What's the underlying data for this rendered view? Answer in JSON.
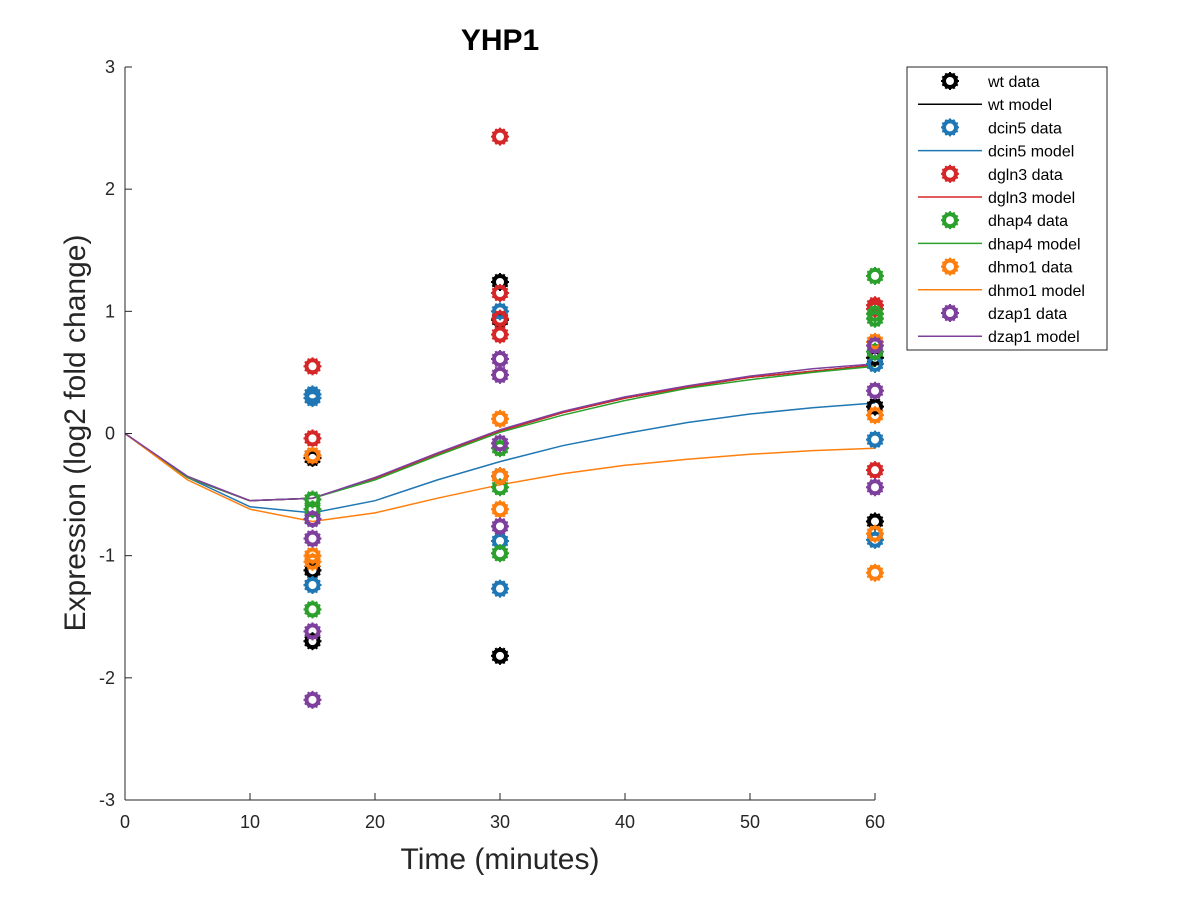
{
  "chart_data": {
    "type": "scatter",
    "title": "YHP1",
    "xlabel": "Time (minutes)",
    "ylabel": "Expression (log2 fold change)",
    "xlim": [
      0,
      60
    ],
    "ylim": [
      -3,
      3
    ],
    "xticks": [
      0,
      10,
      20,
      30,
      40,
      50,
      60
    ],
    "yticks": [
      -3,
      -2,
      -1,
      0,
      1,
      2,
      3
    ],
    "grid": false,
    "legend_position": "top-right outside",
    "model_x": [
      0,
      5,
      10,
      15,
      20,
      25,
      30,
      35,
      40,
      45,
      50,
      55,
      60
    ],
    "series": [
      {
        "name": "wt",
        "data_label": "wt data",
        "model_label": "wt model",
        "color": "#000000",
        "data_points": [
          [
            15,
            -0.2
          ],
          [
            15,
            -1.12
          ],
          [
            15,
            -1.7
          ],
          [
            30,
            1.24
          ],
          [
            30,
            0.93
          ],
          [
            30,
            -0.35
          ],
          [
            30,
            -1.82
          ],
          [
            60,
            0.22
          ],
          [
            60,
            -0.72
          ],
          [
            60,
            0.62
          ]
        ],
        "model": [
          0,
          -0.36,
          -0.55,
          -0.53,
          -0.37,
          -0.17,
          0.02,
          0.17,
          0.29,
          0.38,
          0.46,
          0.51,
          0.56
        ]
      },
      {
        "name": "dcin5",
        "data_label": "dcin5 data",
        "model_label": "dcin5 model",
        "color": "#1f77b4",
        "data_points": [
          [
            15,
            0.32
          ],
          [
            15,
            0.29
          ],
          [
            15,
            -1.24
          ],
          [
            15,
            -0.7
          ],
          [
            30,
            1.0
          ],
          [
            30,
            -0.88
          ],
          [
            30,
            -1.27
          ],
          [
            60,
            -0.05
          ],
          [
            60,
            -0.87
          ],
          [
            60,
            0.57
          ]
        ],
        "model": [
          0,
          -0.36,
          -0.6,
          -0.65,
          -0.55,
          -0.38,
          -0.23,
          -0.1,
          0.0,
          0.09,
          0.16,
          0.21,
          0.25
        ]
      },
      {
        "name": "dgln3",
        "data_label": "dgln3 data",
        "model_label": "dgln3 model",
        "color": "#d62728",
        "data_points": [
          [
            15,
            0.55
          ],
          [
            15,
            -0.04
          ],
          [
            15,
            -0.18
          ],
          [
            30,
            2.43
          ],
          [
            30,
            1.15
          ],
          [
            30,
            0.94
          ],
          [
            30,
            0.81
          ],
          [
            60,
            1.05
          ],
          [
            60,
            1.02
          ],
          [
            60,
            -0.3
          ]
        ],
        "model": [
          0,
          -0.36,
          -0.55,
          -0.53,
          -0.37,
          -0.17,
          0.02,
          0.17,
          0.29,
          0.38,
          0.46,
          0.51,
          0.56
        ]
      },
      {
        "name": "dhap4",
        "data_label": "dhap4 data",
        "model_label": "dhap4 model",
        "color": "#2ca02c",
        "data_points": [
          [
            15,
            -0.54
          ],
          [
            15,
            -0.62
          ],
          [
            15,
            -1.44
          ],
          [
            30,
            -0.12
          ],
          [
            30,
            -0.44
          ],
          [
            30,
            -0.98
          ],
          [
            60,
            1.29
          ],
          [
            60,
            0.98
          ],
          [
            60,
            0.94
          ],
          [
            60,
            0.67
          ]
        ],
        "model": [
          0,
          -0.36,
          -0.55,
          -0.53,
          -0.38,
          -0.18,
          0.01,
          0.15,
          0.27,
          0.37,
          0.44,
          0.5,
          0.55
        ]
      },
      {
        "name": "dhmo1",
        "data_label": "dhmo1 data",
        "model_label": "dhmo1 model",
        "color": "#ff7f0e",
        "data_points": [
          [
            15,
            -1.0
          ],
          [
            15,
            -1.05
          ],
          [
            15,
            -0.18
          ],
          [
            30,
            0.12
          ],
          [
            30,
            -0.35
          ],
          [
            30,
            -0.62
          ],
          [
            60,
            0.75
          ],
          [
            60,
            0.15
          ],
          [
            60,
            -0.82
          ],
          [
            60,
            -1.14
          ]
        ],
        "model": [
          0,
          -0.38,
          -0.62,
          -0.72,
          -0.65,
          -0.53,
          -0.42,
          -0.33,
          -0.26,
          -0.21,
          -0.17,
          -0.14,
          -0.12
        ]
      },
      {
        "name": "dzap1",
        "data_label": "dzap1 data",
        "model_label": "dzap1 model",
        "color": "#7e3f9d",
        "data_points": [
          [
            15,
            -0.7
          ],
          [
            15,
            -0.86
          ],
          [
            15,
            -1.62
          ],
          [
            15,
            -2.18
          ],
          [
            30,
            0.61
          ],
          [
            30,
            0.48
          ],
          [
            30,
            -0.08
          ],
          [
            30,
            -0.76
          ],
          [
            60,
            0.72
          ],
          [
            60,
            0.35
          ],
          [
            60,
            -0.44
          ]
        ],
        "model": [
          0,
          -0.35,
          -0.55,
          -0.53,
          -0.36,
          -0.16,
          0.03,
          0.18,
          0.3,
          0.39,
          0.47,
          0.53,
          0.57
        ]
      }
    ]
  }
}
